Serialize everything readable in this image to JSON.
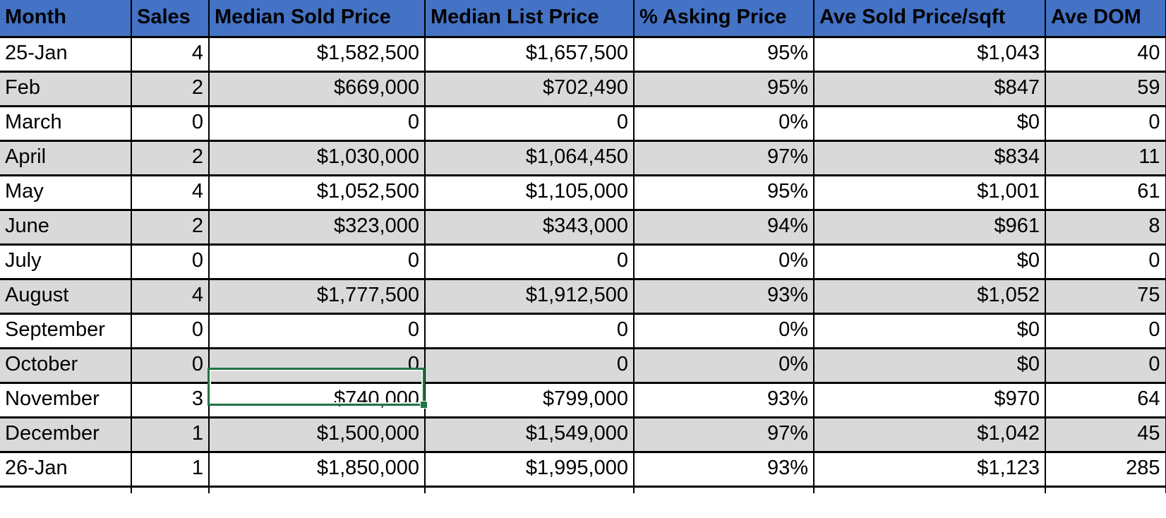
{
  "app": {
    "kind": "spreadsheet-table-view"
  },
  "colors": {
    "header_bg": "#4472C4",
    "band_row_bg": "#D9D9D9",
    "plain_row_bg": "#FFFFFF",
    "grid_border": "#000000",
    "selection_border": "#217346"
  },
  "table": {
    "columns": [
      {
        "label": "Month"
      },
      {
        "label": "Sales"
      },
      {
        "label": "Median Sold Price"
      },
      {
        "label": "Median List Price"
      },
      {
        "label": "% Asking Price"
      },
      {
        "label": "Ave Sold Price/sqft"
      },
      {
        "label": "Ave DOM"
      }
    ],
    "rows": [
      [
        "25-Jan",
        "4",
        "$1,582,500",
        "$1,657,500",
        "95%",
        "$1,043",
        "40"
      ],
      [
        "Feb",
        "2",
        "$669,000",
        "$702,490",
        "95%",
        "$847",
        "59"
      ],
      [
        "March",
        "0",
        "0",
        "0",
        "0%",
        "$0",
        "0"
      ],
      [
        "April",
        "2",
        "$1,030,000",
        "$1,064,450",
        "97%",
        "$834",
        "11"
      ],
      [
        "May",
        "4",
        "$1,052,500",
        "$1,105,000",
        "95%",
        "$1,001",
        "61"
      ],
      [
        "June",
        "2",
        "$323,000",
        "$343,000",
        "94%",
        "$961",
        "8"
      ],
      [
        "July",
        "0",
        "0",
        "0",
        "0%",
        "$0",
        "0"
      ],
      [
        "August",
        "4",
        "$1,777,500",
        "$1,912,500",
        "93%",
        "$1,052",
        "75"
      ],
      [
        "September",
        "0",
        "0",
        "0",
        "0%",
        "$0",
        "0"
      ],
      [
        "October",
        "0",
        "0",
        "0",
        "0%",
        "$0",
        "0"
      ],
      [
        "November",
        "3",
        "$740,000",
        "$799,000",
        "93%",
        "$970",
        "64"
      ],
      [
        "December",
        "1",
        "$1,500,000",
        "$1,549,000",
        "97%",
        "$1,042",
        "45"
      ],
      [
        "26-Jan",
        "1",
        "$1,850,000",
        "$1,995,000",
        "93%",
        "$1,123",
        "285"
      ]
    ]
  },
  "selection": {
    "month": "October",
    "column": "Median Sold Price",
    "value": "0",
    "row_index": 9,
    "col_index": 2
  }
}
